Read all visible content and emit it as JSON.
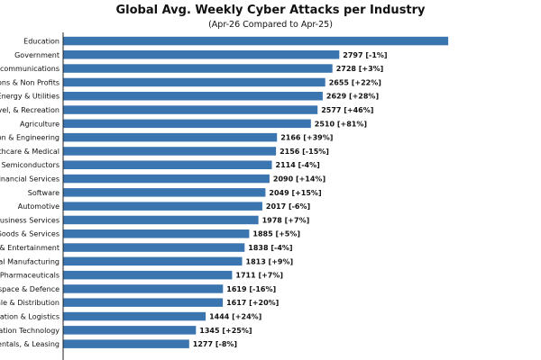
{
  "chart_data": {
    "type": "bar",
    "orientation": "horizontal",
    "title": "Global Avg. Weekly Cyber Attacks per Industry",
    "subtitle": "(Apr-26 Compared to Apr-25)",
    "bar_color": "#3a75b0",
    "categories": [
      "Education",
      "Government",
      "elecommunications",
      "ations & Non Profits",
      "Energy & Utilities",
      "avel, & Recreation",
      "Agriculture",
      "ion & Engineering",
      "althcare & Medical",
      "& Semiconductors",
      "Financial Services",
      "Software",
      "Automotive",
      "Business Services",
      "Goods & Services",
      "a & Entertainment",
      "rial Manufacturing",
      "& Pharmaceuticals",
      "ospace & Defence",
      "sale & Distribution",
      "rtation & Logistics",
      "mation Technology",
      "Rentals, & Leasing"
    ],
    "values": [
      3900,
      2797,
      2728,
      2655,
      2629,
      2577,
      2510,
      2166,
      2156,
      2114,
      2090,
      2049,
      2017,
      1978,
      1885,
      1838,
      1813,
      1711,
      1619,
      1617,
      1444,
      1345,
      1277
    ],
    "labels": [
      "",
      "2797 [-1%]",
      "2728 [+3%]",
      "2655 [+22%]",
      "2629 [+28%]",
      "2577 [+46%]",
      "2510 [+81%]",
      "2166 [+39%]",
      "2156 [-15%]",
      "2114 [-4%]",
      "2090 [+14%]",
      "2049 [+15%]",
      "2017 [-6%]",
      "1978 [+7%]",
      "1885 [+5%]",
      "1838 [-4%]",
      "1813 [+9%]",
      "1711 [+7%]",
      "1619 [-16%]",
      "1617 [+20%]",
      "1444 [+24%]",
      "1345 [+25%]",
      "1277 [-8%]"
    ],
    "xlim": [
      0,
      3800
    ]
  }
}
